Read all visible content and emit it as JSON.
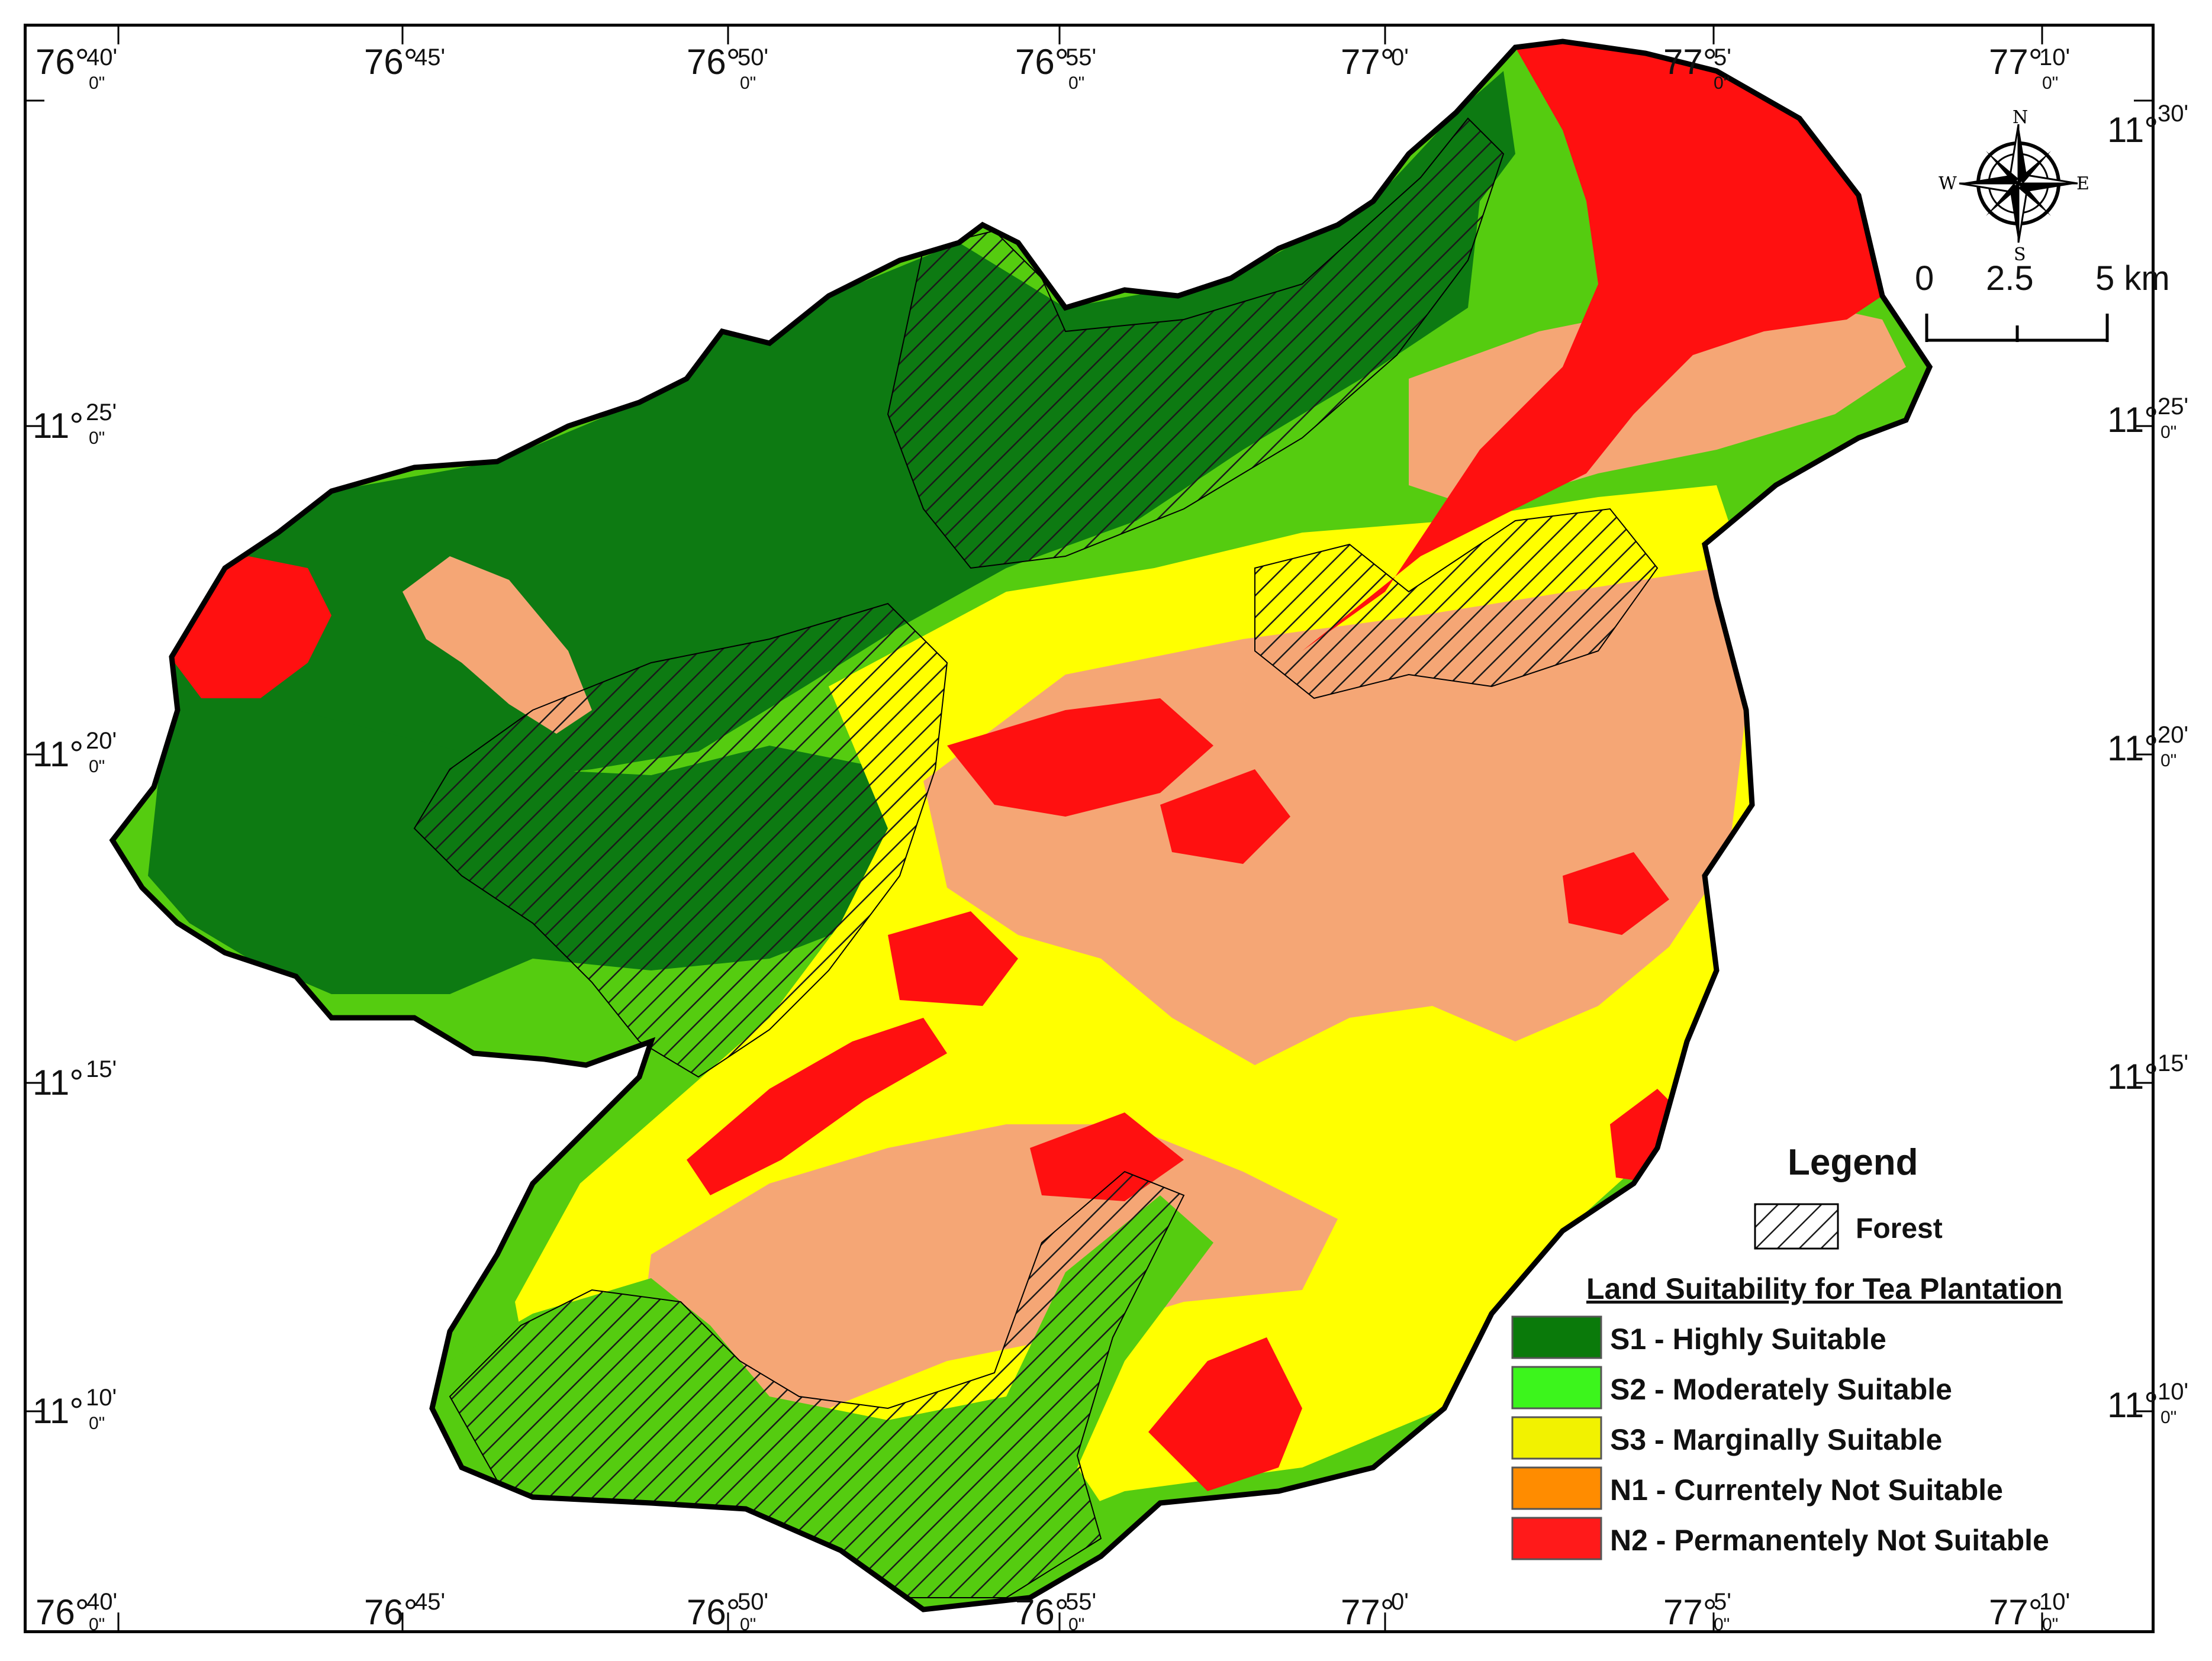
{
  "axes": {
    "top_ticks": [
      {
        "deg": "76°",
        "min": "40'",
        "sec": "0\""
      },
      {
        "deg": "76°",
        "min": "45'",
        "sec": ""
      },
      {
        "deg": "76°",
        "min": "50'",
        "sec": "0\""
      },
      {
        "deg": "76°",
        "min": "55'",
        "sec": "0\""
      },
      {
        "deg": "77°",
        "min": "0'",
        "sec": ""
      },
      {
        "deg": "77°",
        "min": "5'",
        "sec": "0\""
      },
      {
        "deg": "77°",
        "min": "10'",
        "sec": "0\""
      }
    ],
    "bottom_ticks": [
      {
        "deg": "76°",
        "min": "40'",
        "sec": "0\""
      },
      {
        "deg": "76°",
        "min": "45'",
        "sec": ""
      },
      {
        "deg": "76°",
        "min": "50'",
        "sec": "0\""
      },
      {
        "deg": "76°",
        "min": "55'",
        "sec": "0\""
      },
      {
        "deg": "77°",
        "min": "0'",
        "sec": ""
      },
      {
        "deg": "77°",
        "min": "5'",
        "sec": "0\""
      },
      {
        "deg": "77°",
        "min": "10'",
        "sec": "0\""
      }
    ],
    "left_ticks": [
      {
        "deg": "11°",
        "min": "25'",
        "sec": "0\""
      },
      {
        "deg": "11°",
        "min": "20'",
        "sec": "0\""
      },
      {
        "deg": "11°",
        "min": "15'",
        "sec": ""
      },
      {
        "deg": "11°",
        "min": "10'",
        "sec": "0\""
      }
    ],
    "right_ticks": [
      {
        "deg": "11°",
        "min": "30'",
        "sec": ""
      },
      {
        "deg": "11°",
        "min": "25'",
        "sec": "0\""
      },
      {
        "deg": "11°",
        "min": "20'",
        "sec": "0\""
      },
      {
        "deg": "11°",
        "min": "15'",
        "sec": ""
      },
      {
        "deg": "11°",
        "min": "10'",
        "sec": "0\""
      }
    ]
  },
  "compass": {
    "n": "N",
    "s": "S",
    "e": "E",
    "w": "W"
  },
  "scale_bar": {
    "labels": [
      "0",
      "2.5",
      "5 km"
    ]
  },
  "legend": {
    "title": "Legend",
    "forest_label": "Forest",
    "subtitle": "Land Suitability for Tea Plantation",
    "items": [
      {
        "label": "S1 - Highly Suitable",
        "color": "#0a7a0a"
      },
      {
        "label": "S2 - Moderately Suitable",
        "color": "#3cf51c"
      },
      {
        "label": "S3 - Marginally Suitable",
        "color": "#f2f200"
      },
      {
        "label": "N1 - Currentely Not Suitable",
        "color": "#ff8c00"
      },
      {
        "label": "N2 - Permanentely Not Suitable",
        "color": "#ff1a1a"
      }
    ]
  },
  "map_colors": {
    "s1": "#0d7a12",
    "s2": "#55cc10",
    "s3": "#ffff00",
    "n1": "#f5a675",
    "n2": "#ff1010"
  }
}
